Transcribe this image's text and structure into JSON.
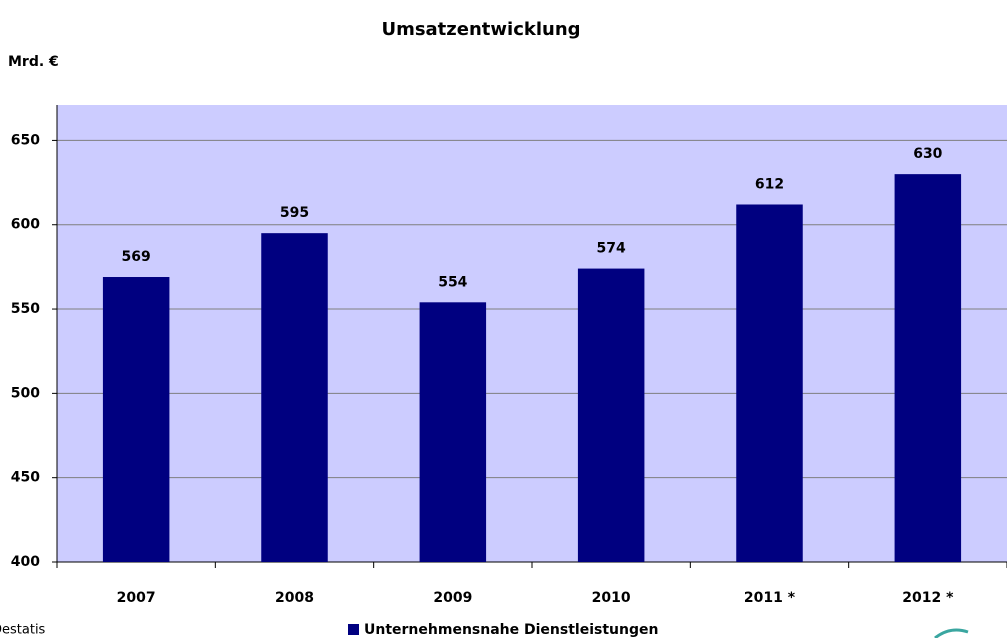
{
  "chart_data": {
    "type": "bar",
    "title": "Umsatzentwicklung",
    "y_label": "Mrd. €",
    "source": "Destatis",
    "categories": [
      "2007",
      "2008",
      "2009",
      "2010",
      "2011 *",
      "2012 *"
    ],
    "series": [
      {
        "name": "Unternehmensnahe Dienstleistungen",
        "color": "#000080",
        "values": [
          569,
          595,
          554,
          574,
          612,
          630
        ]
      }
    ],
    "ylim": [
      400,
      671
    ],
    "yticks": [
      400,
      450,
      500,
      550,
      600,
      650
    ],
    "grid": true,
    "plot_background": "#ccccff",
    "legend": "bottom"
  }
}
